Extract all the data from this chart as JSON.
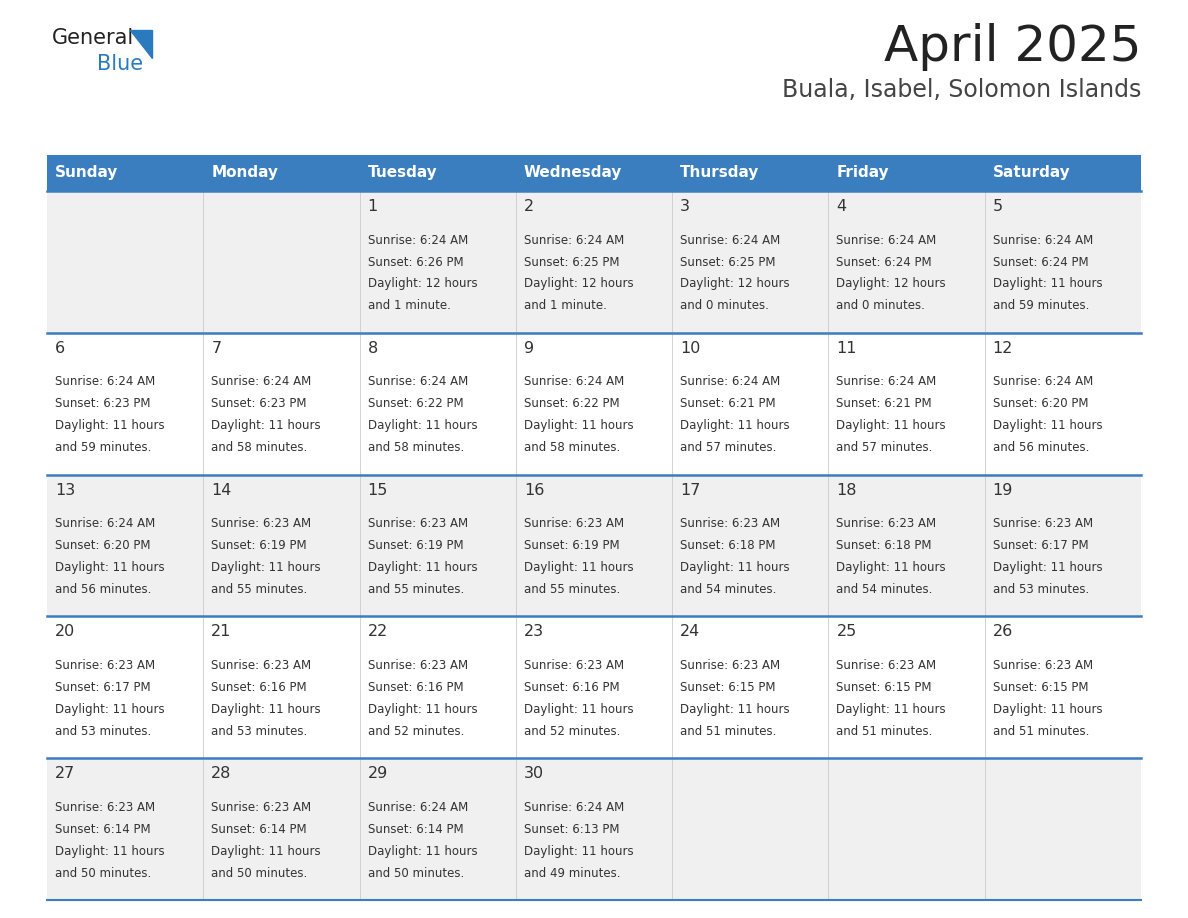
{
  "title": "April 2025",
  "subtitle": "Buala, Isabel, Solomon Islands",
  "header_color": "#3a7ebf",
  "header_text_color": "#ffffff",
  "day_names": [
    "Sunday",
    "Monday",
    "Tuesday",
    "Wednesday",
    "Thursday",
    "Friday",
    "Saturday"
  ],
  "row_bg_colors": [
    "#f0f0f0",
    "#ffffff"
  ],
  "divider_color": "#3a7ebf",
  "text_color": "#333333",
  "title_color": "#222222",
  "subtitle_color": "#444444",
  "logo_black": "#222222",
  "logo_blue": "#2a7abf",
  "col_divider_color": "#cccccc",
  "days": [
    {
      "day": 1,
      "col": 2,
      "row": 0,
      "sunrise": "6:24 AM",
      "sunset": "6:26 PM",
      "daylight_hours": 12,
      "daylight_minutes": 1
    },
    {
      "day": 2,
      "col": 3,
      "row": 0,
      "sunrise": "6:24 AM",
      "sunset": "6:25 PM",
      "daylight_hours": 12,
      "daylight_minutes": 1
    },
    {
      "day": 3,
      "col": 4,
      "row": 0,
      "sunrise": "6:24 AM",
      "sunset": "6:25 PM",
      "daylight_hours": 12,
      "daylight_minutes": 0
    },
    {
      "day": 4,
      "col": 5,
      "row": 0,
      "sunrise": "6:24 AM",
      "sunset": "6:24 PM",
      "daylight_hours": 12,
      "daylight_minutes": 0
    },
    {
      "day": 5,
      "col": 6,
      "row": 0,
      "sunrise": "6:24 AM",
      "sunset": "6:24 PM",
      "daylight_hours": 11,
      "daylight_minutes": 59
    },
    {
      "day": 6,
      "col": 0,
      "row": 1,
      "sunrise": "6:24 AM",
      "sunset": "6:23 PM",
      "daylight_hours": 11,
      "daylight_minutes": 59
    },
    {
      "day": 7,
      "col": 1,
      "row": 1,
      "sunrise": "6:24 AM",
      "sunset": "6:23 PM",
      "daylight_hours": 11,
      "daylight_minutes": 58
    },
    {
      "day": 8,
      "col": 2,
      "row": 1,
      "sunrise": "6:24 AM",
      "sunset": "6:22 PM",
      "daylight_hours": 11,
      "daylight_minutes": 58
    },
    {
      "day": 9,
      "col": 3,
      "row": 1,
      "sunrise": "6:24 AM",
      "sunset": "6:22 PM",
      "daylight_hours": 11,
      "daylight_minutes": 58
    },
    {
      "day": 10,
      "col": 4,
      "row": 1,
      "sunrise": "6:24 AM",
      "sunset": "6:21 PM",
      "daylight_hours": 11,
      "daylight_minutes": 57
    },
    {
      "day": 11,
      "col": 5,
      "row": 1,
      "sunrise": "6:24 AM",
      "sunset": "6:21 PM",
      "daylight_hours": 11,
      "daylight_minutes": 57
    },
    {
      "day": 12,
      "col": 6,
      "row": 1,
      "sunrise": "6:24 AM",
      "sunset": "6:20 PM",
      "daylight_hours": 11,
      "daylight_minutes": 56
    },
    {
      "day": 13,
      "col": 0,
      "row": 2,
      "sunrise": "6:24 AM",
      "sunset": "6:20 PM",
      "daylight_hours": 11,
      "daylight_minutes": 56
    },
    {
      "day": 14,
      "col": 1,
      "row": 2,
      "sunrise": "6:23 AM",
      "sunset": "6:19 PM",
      "daylight_hours": 11,
      "daylight_minutes": 55
    },
    {
      "day": 15,
      "col": 2,
      "row": 2,
      "sunrise": "6:23 AM",
      "sunset": "6:19 PM",
      "daylight_hours": 11,
      "daylight_minutes": 55
    },
    {
      "day": 16,
      "col": 3,
      "row": 2,
      "sunrise": "6:23 AM",
      "sunset": "6:19 PM",
      "daylight_hours": 11,
      "daylight_minutes": 55
    },
    {
      "day": 17,
      "col": 4,
      "row": 2,
      "sunrise": "6:23 AM",
      "sunset": "6:18 PM",
      "daylight_hours": 11,
      "daylight_minutes": 54
    },
    {
      "day": 18,
      "col": 5,
      "row": 2,
      "sunrise": "6:23 AM",
      "sunset": "6:18 PM",
      "daylight_hours": 11,
      "daylight_minutes": 54
    },
    {
      "day": 19,
      "col": 6,
      "row": 2,
      "sunrise": "6:23 AM",
      "sunset": "6:17 PM",
      "daylight_hours": 11,
      "daylight_minutes": 53
    },
    {
      "day": 20,
      "col": 0,
      "row": 3,
      "sunrise": "6:23 AM",
      "sunset": "6:17 PM",
      "daylight_hours": 11,
      "daylight_minutes": 53
    },
    {
      "day": 21,
      "col": 1,
      "row": 3,
      "sunrise": "6:23 AM",
      "sunset": "6:16 PM",
      "daylight_hours": 11,
      "daylight_minutes": 53
    },
    {
      "day": 22,
      "col": 2,
      "row": 3,
      "sunrise": "6:23 AM",
      "sunset": "6:16 PM",
      "daylight_hours": 11,
      "daylight_minutes": 52
    },
    {
      "day": 23,
      "col": 3,
      "row": 3,
      "sunrise": "6:23 AM",
      "sunset": "6:16 PM",
      "daylight_hours": 11,
      "daylight_minutes": 52
    },
    {
      "day": 24,
      "col": 4,
      "row": 3,
      "sunrise": "6:23 AM",
      "sunset": "6:15 PM",
      "daylight_hours": 11,
      "daylight_minutes": 51
    },
    {
      "day": 25,
      "col": 5,
      "row": 3,
      "sunrise": "6:23 AM",
      "sunset": "6:15 PM",
      "daylight_hours": 11,
      "daylight_minutes": 51
    },
    {
      "day": 26,
      "col": 6,
      "row": 3,
      "sunrise": "6:23 AM",
      "sunset": "6:15 PM",
      "daylight_hours": 11,
      "daylight_minutes": 51
    },
    {
      "day": 27,
      "col": 0,
      "row": 4,
      "sunrise": "6:23 AM",
      "sunset": "6:14 PM",
      "daylight_hours": 11,
      "daylight_minutes": 50
    },
    {
      "day": 28,
      "col": 1,
      "row": 4,
      "sunrise": "6:23 AM",
      "sunset": "6:14 PM",
      "daylight_hours": 11,
      "daylight_minutes": 50
    },
    {
      "day": 29,
      "col": 2,
      "row": 4,
      "sunrise": "6:24 AM",
      "sunset": "6:14 PM",
      "daylight_hours": 11,
      "daylight_minutes": 50
    },
    {
      "day": 30,
      "col": 3,
      "row": 4,
      "sunrise": "6:24 AM",
      "sunset": "6:13 PM",
      "daylight_hours": 11,
      "daylight_minutes": 49
    }
  ]
}
